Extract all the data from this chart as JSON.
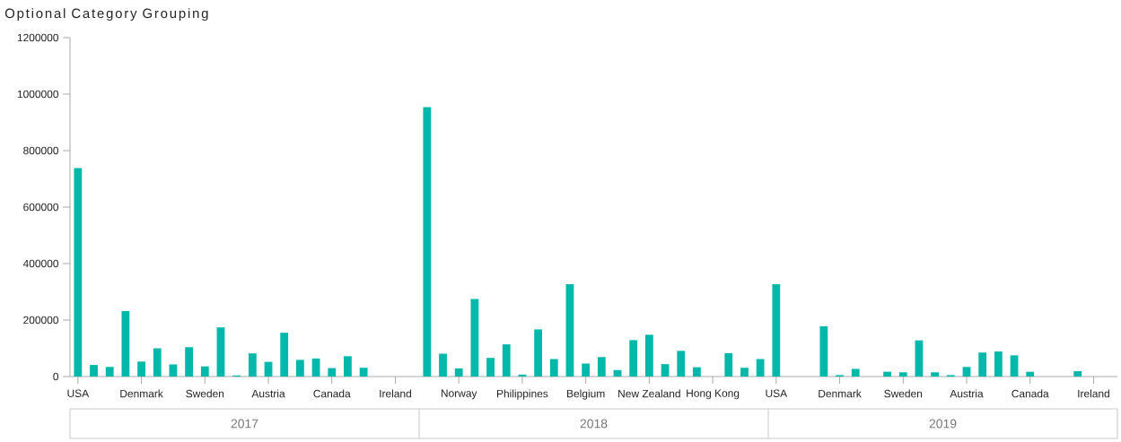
{
  "chart_data": {
    "type": "bar",
    "title": "Optional Category Grouping",
    "categories": [
      "USA",
      null,
      null,
      null,
      "Denmark",
      null,
      null,
      null,
      "Sweden",
      null,
      null,
      null,
      "Austria",
      null,
      null,
      null,
      "Canada",
      null,
      null,
      null,
      "Ireland",
      null,
      null,
      null,
      "Norway",
      null,
      null,
      null,
      "Philippines",
      null,
      null,
      null,
      "Belgium",
      null,
      null,
      null,
      "New Zealand",
      null,
      null,
      null,
      "Hong Kong",
      null,
      null,
      null,
      "USA",
      null,
      null,
      null,
      "Denmark",
      null,
      null,
      null,
      "Sweden",
      null,
      null,
      null,
      "Austria",
      null,
      null,
      null,
      "Canada",
      null,
      null,
      null,
      "Ireland",
      null
    ],
    "values": [
      738000,
      41000,
      34000,
      232000,
      53000,
      100000,
      43000,
      104000,
      36000,
      174000,
      4000,
      82000,
      52000,
      155000,
      59000,
      64000,
      30000,
      72000,
      31000,
      null,
      null,
      null,
      954000,
      81000,
      29000,
      275000,
      66000,
      114000,
      7000,
      167000,
      62000,
      327000,
      46000,
      69000,
      23000,
      129000,
      148000,
      44000,
      91000,
      33000,
      null,
      83000,
      31000,
      62000,
      327000,
      null,
      null,
      178000,
      5000,
      27000,
      null,
      17000,
      15000,
      128000,
      15000,
      5000,
      34000,
      85000,
      89000,
      75000,
      17000,
      null,
      null,
      19000,
      null,
      null
    ],
    "color": "#01b8aa",
    "ylim": [
      0,
      1200000
    ],
    "yticks": [
      0,
      200000,
      400000,
      600000,
      800000,
      1000000,
      1200000
    ],
    "annotations": [
      "2017",
      "2018",
      "2019"
    ]
  }
}
